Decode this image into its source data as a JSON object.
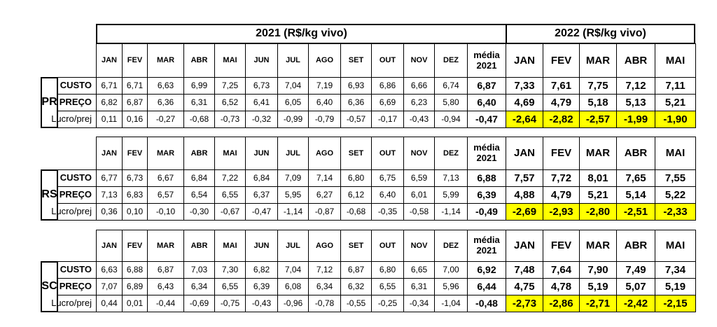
{
  "header": {
    "year_2021": "2021  (R$/kg vivo)",
    "year_2022": "2022 (R$/kg vivo)"
  },
  "sections": [
    {
      "region": "PR",
      "columns": [
        "JAN",
        "FEV",
        "MAR",
        "ABR",
        "MAI",
        "JUN",
        "JUL",
        "AGO",
        "SET",
        "OUT",
        "NOV",
        "DEZ",
        "média 2021",
        "JAN",
        "FEV",
        "MAR",
        "ABR",
        "MAI"
      ],
      "rows": [
        {
          "label": "CUSTO",
          "values": [
            "6,71",
            "6,71",
            "6,63",
            "6,99",
            "7,25",
            "6,73",
            "7,04",
            "7,19",
            "6,93",
            "6,86",
            "6,66",
            "6,74",
            "6,87",
            "7,33",
            "7,61",
            "7,75",
            "7,12",
            "7,11"
          ]
        },
        {
          "label": "PREÇO",
          "values": [
            "6,82",
            "6,87",
            "6,36",
            "6,31",
            "6,52",
            "6,41",
            "6,05",
            "6,40",
            "6,36",
            "6,69",
            "6,23",
            "5,80",
            "6,40",
            "4,69",
            "4,79",
            "5,18",
            "5,13",
            "5,21"
          ]
        },
        {
          "label": "Lucro/prej",
          "values": [
            "0,11",
            "0,16",
            "-0,27",
            "-0,68",
            "-0,73",
            "-0,32",
            "-0,99",
            "-0,79",
            "-0,57",
            "-0,17",
            "-0,43",
            "-0,94",
            "-0,47",
            "-2,64",
            "-2,82",
            "-2,57",
            "-1,99",
            "-1,90"
          ]
        }
      ]
    },
    {
      "region": "RS",
      "columns": [
        "JAN",
        "FEV",
        "MAR",
        "ABR",
        "MAI",
        "JUN",
        "JUL",
        "AGO",
        "SET",
        "OUT",
        "NOV",
        "DEZ",
        "média 2021",
        "JAN",
        "FEV",
        "MAR",
        "ABR",
        "MAI"
      ],
      "rows": [
        {
          "label": "CUSTO",
          "values": [
            "6,77",
            "6,73",
            "6,67",
            "6,84",
            "7,22",
            "6,84",
            "7,09",
            "7,14",
            "6,80",
            "6,75",
            "6,59",
            "7,13",
            "6,88",
            "7,57",
            "7,72",
            "8,01",
            "7,65",
            "7,55"
          ]
        },
        {
          "label": "PREÇO",
          "values": [
            "7,13",
            "6,83",
            "6,57",
            "6,54",
            "6,55",
            "6,37",
            "5,95",
            "6,27",
            "6,12",
            "6,40",
            "6,01",
            "5,99",
            "6,39",
            "4,88",
            "4,79",
            "5,21",
            "5,14",
            "5,22"
          ]
        },
        {
          "label": "Lucro/prej",
          "values": [
            "0,36",
            "0,10",
            "-0,10",
            "-0,30",
            "-0,67",
            "-0,47",
            "-1,14",
            "-0,87",
            "-0,68",
            "-0,35",
            "-0,58",
            "-1,14",
            "-0,49",
            "-2,69",
            "-2,93",
            "-2,80",
            "-2,51",
            "-2,33"
          ]
        }
      ]
    },
    {
      "region": "SC",
      "columns": [
        "JAN",
        "FEV",
        "MAR",
        "ABR",
        "MAI",
        "JUN",
        "JUL",
        "AGO",
        "SET",
        "OUT",
        "NOV",
        "DEZ",
        "média 2021",
        "JAN",
        "FEV",
        "MAR",
        "ABR",
        "MAI"
      ],
      "rows": [
        {
          "label": "CUSTO",
          "values": [
            "6,63",
            "6,88",
            "6,87",
            "7,03",
            "7,30",
            "6,82",
            "7,04",
            "7,12",
            "6,87",
            "6,80",
            "6,65",
            "7,00",
            "6,92",
            "7,48",
            "7,64",
            "7,90",
            "7,49",
            "7,34"
          ]
        },
        {
          "label": "PREÇO",
          "values": [
            "7,07",
            "6,89",
            "6,43",
            "6,34",
            "6,55",
            "6,39",
            "6,08",
            "6,34",
            "6,32",
            "6,55",
            "6,31",
            "5,96",
            "6,44",
            "4,75",
            "4,78",
            "5,19",
            "5,07",
            "5,19"
          ]
        },
        {
          "label": "Lucro/prej",
          "values": [
            "0,44",
            "0,01",
            "-0,44",
            "-0,69",
            "-0,75",
            "-0,43",
            "-0,96",
            "-0,78",
            "-0,55",
            "-0,25",
            "-0,34",
            "-1,04",
            "-0,48",
            "-2,73",
            "-2,86",
            "-2,71",
            "-2,42",
            "-2,15"
          ]
        }
      ]
    }
  ]
}
